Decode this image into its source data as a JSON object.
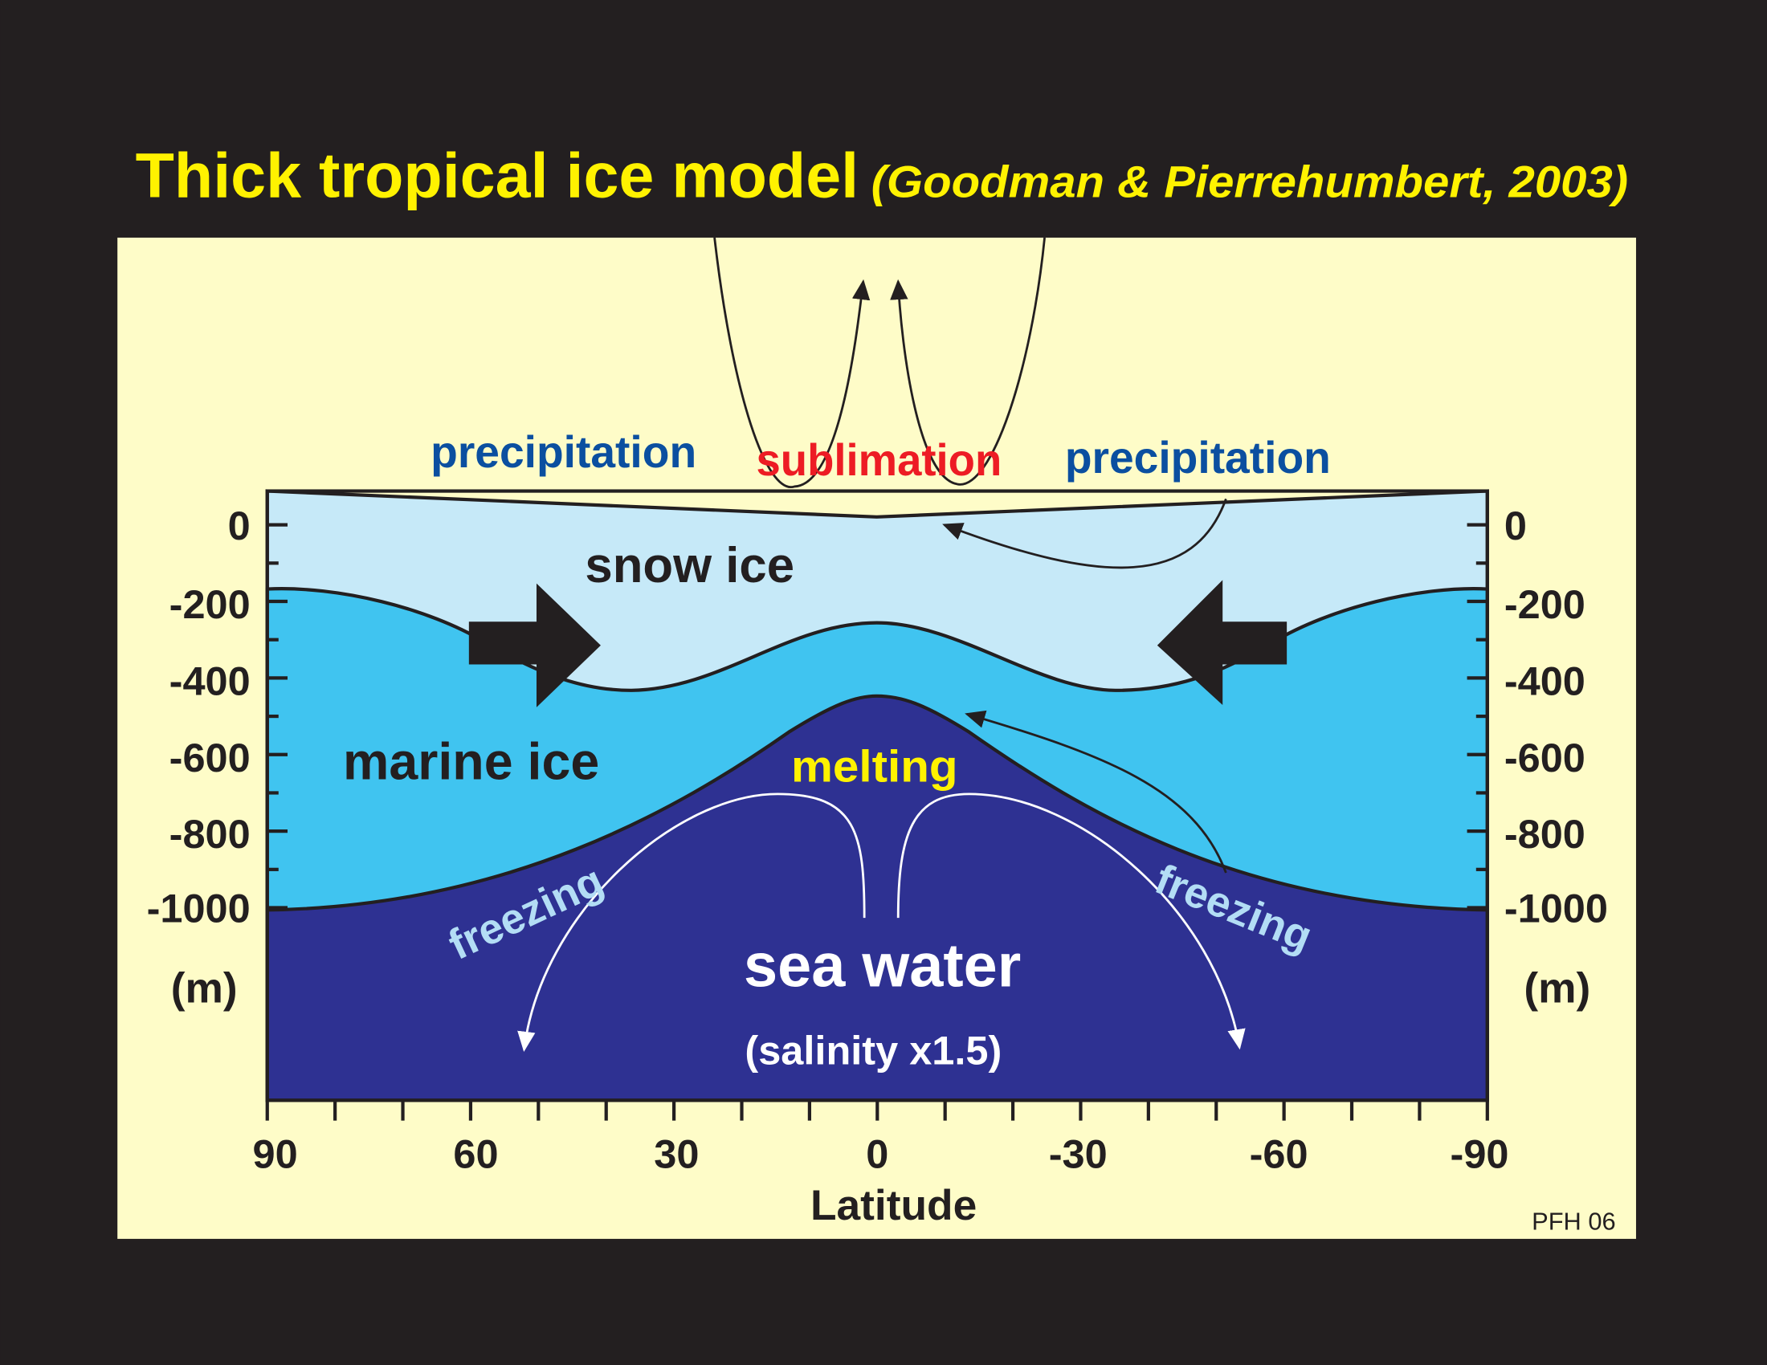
{
  "title": "Thick tropical ice model",
  "citation": "(Goodman & Pierrehumbert, 2003)",
  "labels": {
    "precipitation_left": "precipitation",
    "sublimation": "sublimation",
    "precipitation_right": "precipitation",
    "snow_ice": "snow ice",
    "marine_ice": "marine ice",
    "melting": "melting",
    "freezing_left": "freezing",
    "freezing_right": "freezing",
    "sea_water": "sea water",
    "salinity": "(salinity x1.5)"
  },
  "depth_axis": {
    "ticks": [
      "0",
      "-200",
      "-400",
      "-600",
      "-800",
      "-1000"
    ],
    "unit": "(m)"
  },
  "latitude_axis": {
    "ticks": [
      "90",
      "60",
      "30",
      "0",
      "-30",
      "-60",
      "-90"
    ],
    "title": "Latitude"
  },
  "credit": "PFH 06"
}
